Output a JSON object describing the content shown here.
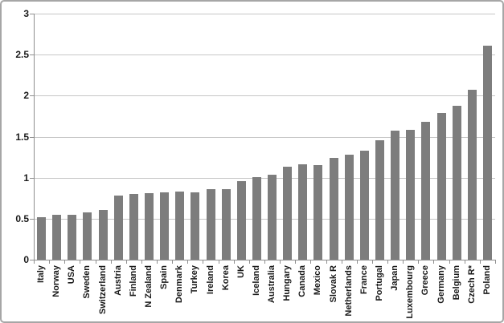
{
  "window": {
    "background_color": "#ffffff",
    "border_color": "#a6a6a6"
  },
  "chart_data": {
    "type": "bar",
    "title": "",
    "xlabel": "",
    "ylabel": "",
    "legend": "none",
    "grid": true,
    "categories": [
      "Italy",
      "Norway",
      "USA",
      "Sweden",
      "Switzerland",
      "Austria",
      "Finland",
      "N Zealand",
      "Spain",
      "Denmark",
      "Turkey",
      "Ireland",
      "Korea",
      "UK",
      "Iceland",
      "Australia",
      "Hungary",
      "Canada",
      "Mexico",
      "Slovak R",
      "Netherlands",
      "France",
      "Portugal",
      "Japan",
      "Luxembourg",
      "Greece",
      "Germany",
      "Belgium",
      "Czech R*",
      "Poland"
    ],
    "values": [
      0.52,
      0.55,
      0.55,
      0.58,
      0.61,
      0.78,
      0.8,
      0.81,
      0.82,
      0.83,
      0.82,
      0.86,
      0.86,
      0.96,
      1.01,
      1.04,
      1.13,
      1.16,
      1.15,
      1.24,
      1.28,
      1.33,
      1.46,
      1.57,
      1.58,
      1.68,
      1.79,
      1.88,
      2.07,
      2.61
    ],
    "ylim": [
      0,
      3
    ],
    "yticks": [
      0,
      0.5,
      1,
      1.5,
      2,
      2.5,
      3
    ],
    "ytick_labels": [
      "0",
      "0.5",
      "1",
      "1.5",
      "2",
      "2.5",
      "3"
    ],
    "x_label_rotation": -90,
    "bar_color": "#7d7d7d",
    "gridline_color": "#c6c6c6",
    "axis_color": "#8f8f8f",
    "text_color": "#1a1a1a"
  }
}
